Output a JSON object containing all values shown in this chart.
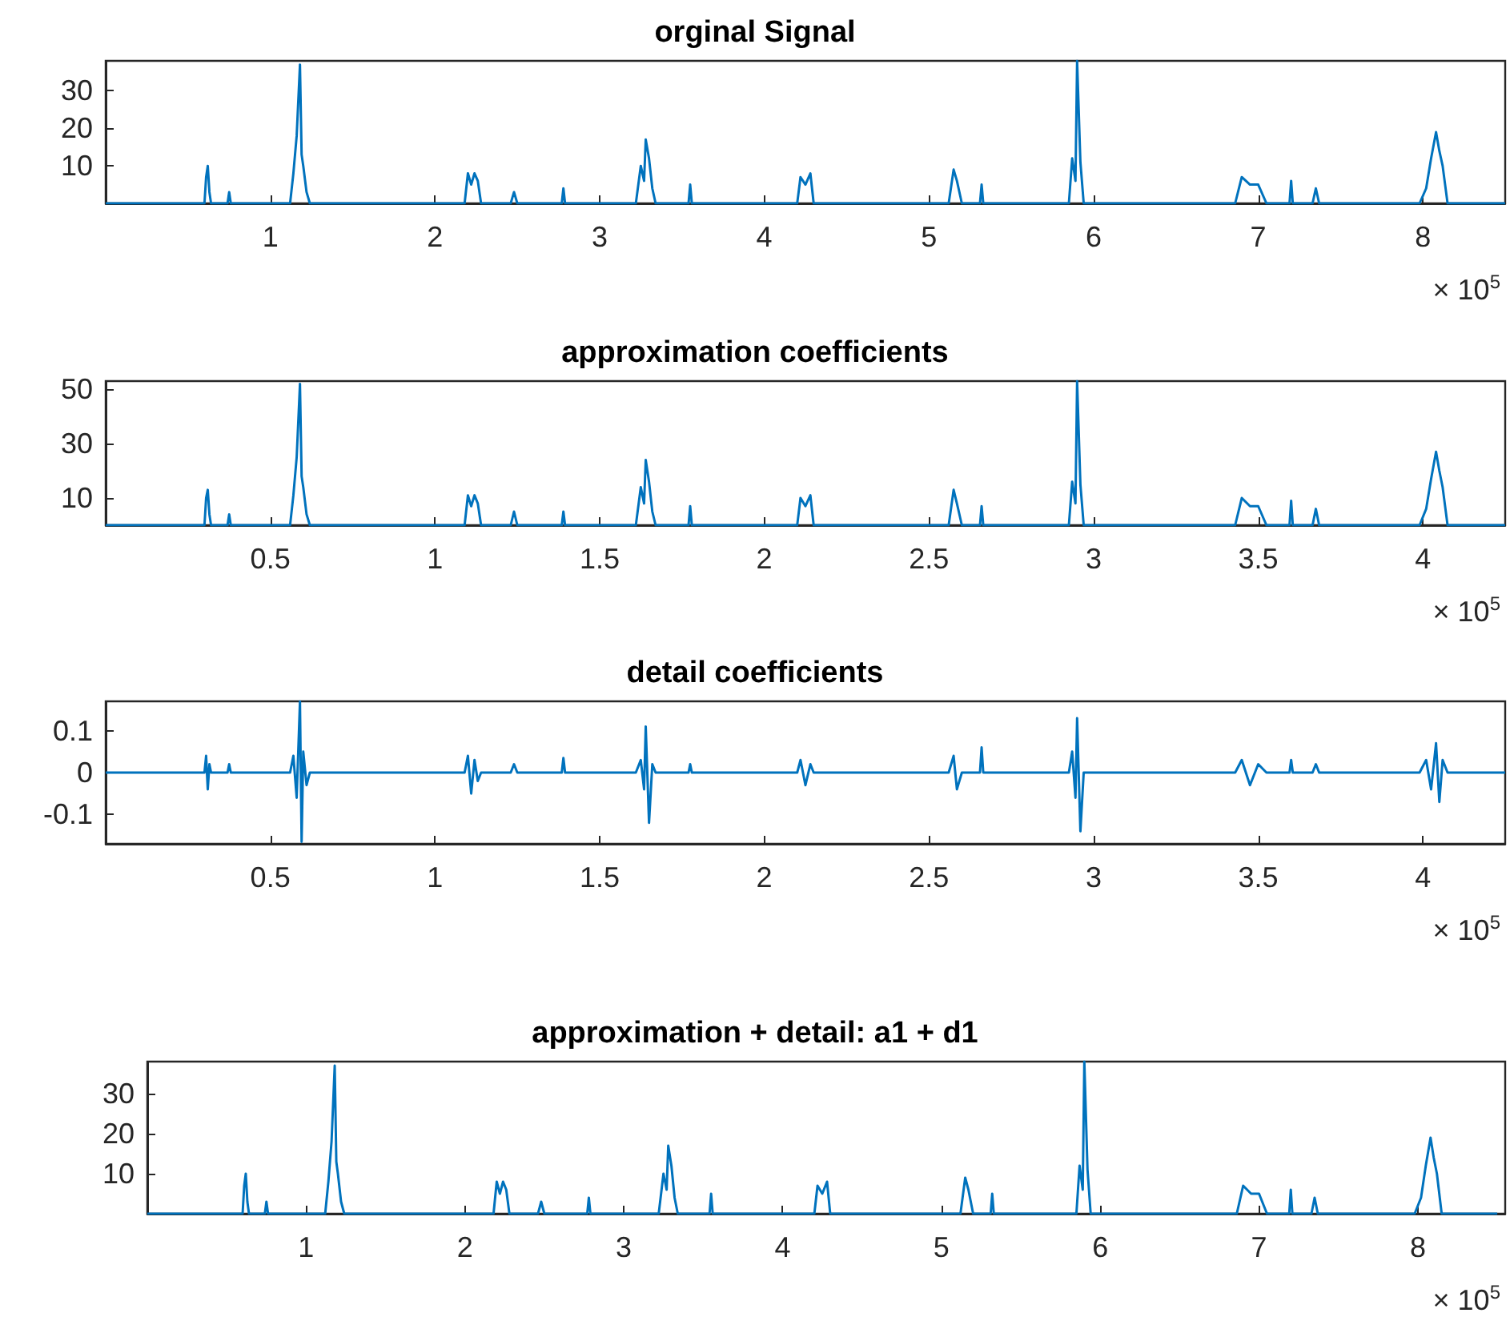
{
  "chart_data": [
    {
      "type": "line",
      "title": "orginal Signal",
      "annotations": [
        "× 10$^{5}$"
      ],
      "color": "#0072bd",
      "marker": "none",
      "grid": false,
      "xlim": [
        0,
        8.5
      ],
      "xticks": [
        1,
        2,
        3,
        4,
        5,
        6,
        7,
        8
      ],
      "ylim": [
        0,
        38
      ],
      "yticks": [
        10,
        20,
        30
      ],
      "x": [
        0,
        0.6,
        0.61,
        0.62,
        0.63,
        0.64,
        0.74,
        0.75,
        0.76,
        1.12,
        1.14,
        1.16,
        1.18,
        1.19,
        1.2,
        1.22,
        1.24,
        2.18,
        2.2,
        2.22,
        2.24,
        2.26,
        2.28,
        2.46,
        2.48,
        2.5,
        2.77,
        2.78,
        2.79,
        3.22,
        3.25,
        3.27,
        3.28,
        3.3,
        3.32,
        3.34,
        3.54,
        3.55,
        3.56,
        4.2,
        4.22,
        4.25,
        4.28,
        4.3,
        5.12,
        5.15,
        5.17,
        5.2,
        5.31,
        5.32,
        5.33,
        5.85,
        5.87,
        5.89,
        5.9,
        5.92,
        5.94,
        6.86,
        6.9,
        6.95,
        7.0,
        7.05,
        7.19,
        7.2,
        7.21,
        7.33,
        7.35,
        7.37,
        7.98,
        8.02,
        8.05,
        8.08,
        8.1,
        8.12,
        8.15,
        8.5
      ],
      "values": [
        0,
        0,
        7,
        10,
        3,
        0,
        0,
        3,
        0,
        0,
        8,
        18,
        37,
        13,
        10,
        3,
        0,
        0,
        8,
        5,
        8,
        6,
        0,
        0,
        3,
        0,
        0,
        4,
        0,
        0,
        10,
        6,
        17,
        12,
        4,
        0,
        0,
        5,
        0,
        0,
        7,
        5,
        8,
        0,
        0,
        9,
        6,
        0,
        0,
        5,
        0,
        0,
        12,
        6,
        38,
        11,
        0,
        0,
        7,
        5,
        5,
        0,
        0,
        6,
        0,
        0,
        4,
        0,
        0,
        4,
        12,
        19,
        14,
        10,
        0,
        0
      ]
    },
    {
      "type": "line",
      "title": "approximation coefficients",
      "annotations": [
        "× 10$^{5}$"
      ],
      "color": "#0072bd",
      "marker": "none",
      "grid": false,
      "xlim": [
        0,
        4.25
      ],
      "xticks": [
        0.5,
        1,
        1.5,
        2,
        2.5,
        3,
        3.5,
        4
      ],
      "ylim": [
        0,
        53
      ],
      "yticks": [
        10,
        30,
        50
      ],
      "x": [
        0,
        0.3,
        0.305,
        0.31,
        0.315,
        0.32,
        0.37,
        0.375,
        0.38,
        0.56,
        0.57,
        0.58,
        0.59,
        0.595,
        0.6,
        0.61,
        0.62,
        1.09,
        1.1,
        1.11,
        1.12,
        1.13,
        1.14,
        1.23,
        1.24,
        1.25,
        1.385,
        1.39,
        1.395,
        1.61,
        1.625,
        1.635,
        1.64,
        1.65,
        1.66,
        1.67,
        1.77,
        1.775,
        1.78,
        2.1,
        2.11,
        2.125,
        2.14,
        2.15,
        2.56,
        2.575,
        2.585,
        2.6,
        2.655,
        2.66,
        2.665,
        2.925,
        2.935,
        2.945,
        2.95,
        2.96,
        2.97,
        3.43,
        3.45,
        3.475,
        3.5,
        3.525,
        3.595,
        3.6,
        3.605,
        3.665,
        3.675,
        3.685,
        3.99,
        4.01,
        4.025,
        4.04,
        4.05,
        4.06,
        4.075,
        4.25
      ],
      "values": [
        0,
        0,
        10,
        13,
        4,
        0,
        0,
        4,
        0,
        0,
        11,
        25,
        52,
        18,
        14,
        4,
        0,
        0,
        11,
        7,
        11,
        8,
        0,
        0,
        5,
        0,
        0,
        5,
        0,
        0,
        14,
        8,
        24,
        16,
        5,
        0,
        0,
        7,
        0,
        0,
        10,
        7,
        11,
        0,
        0,
        13,
        8,
        0,
        0,
        7,
        0,
        0,
        16,
        8,
        53,
        15,
        0,
        0,
        10,
        7,
        7,
        0,
        0,
        9,
        0,
        0,
        6,
        0,
        0,
        6,
        17,
        27,
        20,
        14,
        0,
        0
      ]
    },
    {
      "type": "line",
      "title": "detail coefficients",
      "annotations": [
        "× 10$^{5}$"
      ],
      "color": "#0072bd",
      "marker": "none",
      "grid": false,
      "xlim": [
        0,
        4.25
      ],
      "xticks": [
        0.5,
        1,
        1.5,
        2,
        2.5,
        3,
        3.5,
        4
      ],
      "ylim": [
        -0.17,
        0.17
      ],
      "yticks": [
        -0.1,
        0,
        0.1
      ],
      "x": [
        0,
        0.3,
        0.305,
        0.31,
        0.315,
        0.32,
        0.37,
        0.375,
        0.38,
        0.56,
        0.57,
        0.58,
        0.59,
        0.595,
        0.6,
        0.61,
        0.62,
        1.09,
        1.1,
        1.11,
        1.12,
        1.13,
        1.14,
        1.23,
        1.24,
        1.25,
        1.385,
        1.39,
        1.395,
        1.61,
        1.625,
        1.635,
        1.64,
        1.65,
        1.66,
        1.67,
        1.77,
        1.775,
        1.78,
        2.1,
        2.11,
        2.125,
        2.14,
        2.15,
        2.56,
        2.575,
        2.585,
        2.6,
        2.655,
        2.66,
        2.665,
        2.925,
        2.935,
        2.945,
        2.95,
        2.96,
        2.97,
        3.43,
        3.45,
        3.475,
        3.5,
        3.525,
        3.595,
        3.6,
        3.605,
        3.665,
        3.675,
        3.685,
        3.99,
        4.01,
        4.025,
        4.04,
        4.05,
        4.06,
        4.075,
        4.25
      ],
      "values": [
        0,
        0,
        0.04,
        -0.04,
        0.02,
        0,
        0,
        0.02,
        0,
        0,
        0.04,
        -0.06,
        0.17,
        -0.165,
        0.05,
        -0.03,
        0,
        0,
        0.04,
        -0.05,
        0.03,
        -0.02,
        0,
        0,
        0.02,
        0,
        0,
        0.035,
        0,
        0,
        0.03,
        -0.04,
        0.11,
        -0.12,
        0.02,
        0,
        0,
        0.02,
        0,
        0,
        0.03,
        -0.03,
        0.02,
        0,
        0,
        0.04,
        -0.04,
        0,
        0,
        0.06,
        0,
        0,
        0.05,
        -0.06,
        0.13,
        -0.14,
        0,
        0,
        0.03,
        -0.03,
        0.02,
        0,
        0,
        0.03,
        0,
        0,
        0.02,
        0,
        0,
        0.03,
        -0.04,
        0.07,
        -0.07,
        0.03,
        0,
        0
      ]
    },
    {
      "type": "line",
      "title": "approximation + detail: a1 + d1",
      "annotations": [
        "× 10$^{5}$"
      ],
      "color": "#0072bd",
      "marker": "none",
      "grid": false,
      "xlim": [
        0,
        8.55
      ],
      "xticks": [
        1,
        2,
        3,
        4,
        5,
        6,
        7,
        8
      ],
      "ylim": [
        0,
        38
      ],
      "yticks": [
        10,
        20,
        30
      ],
      "x": [
        0,
        0.6,
        0.61,
        0.62,
        0.63,
        0.64,
        0.74,
        0.75,
        0.76,
        1.12,
        1.14,
        1.16,
        1.18,
        1.19,
        1.2,
        1.22,
        1.24,
        2.18,
        2.2,
        2.22,
        2.24,
        2.26,
        2.28,
        2.46,
        2.48,
        2.5,
        2.77,
        2.78,
        2.79,
        3.22,
        3.25,
        3.27,
        3.28,
        3.3,
        3.32,
        3.34,
        3.54,
        3.55,
        3.56,
        4.2,
        4.22,
        4.25,
        4.28,
        4.3,
        5.12,
        5.15,
        5.17,
        5.2,
        5.31,
        5.32,
        5.33,
        5.85,
        5.87,
        5.89,
        5.9,
        5.92,
        5.94,
        6.86,
        6.9,
        6.95,
        7.0,
        7.05,
        7.19,
        7.2,
        7.21,
        7.33,
        7.35,
        7.37,
        7.98,
        8.02,
        8.05,
        8.08,
        8.1,
        8.12,
        8.15,
        8.5
      ],
      "values": [
        0,
        0,
        7,
        10,
        3,
        0,
        0,
        3,
        0,
        0,
        8,
        18,
        37,
        13,
        10,
        3,
        0,
        0,
        8,
        5,
        8,
        6,
        0,
        0,
        3,
        0,
        0,
        4,
        0,
        0,
        10,
        6,
        17,
        12,
        4,
        0,
        0,
        5,
        0,
        0,
        7,
        5,
        8,
        0,
        0,
        9,
        6,
        0,
        0,
        5,
        0,
        0,
        12,
        6,
        38,
        11,
        0,
        0,
        7,
        5,
        5,
        0,
        0,
        6,
        0,
        0,
        4,
        0,
        0,
        4,
        12,
        19,
        14,
        10,
        0,
        0
      ]
    }
  ]
}
